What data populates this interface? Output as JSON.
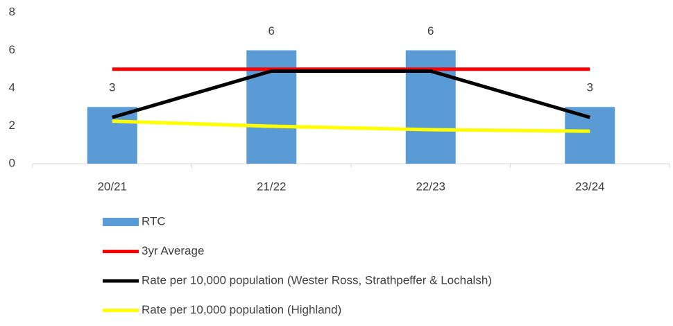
{
  "chart_data": {
    "type": "bar",
    "categories": [
      "20/21",
      "21/22",
      "22/23",
      "23/24"
    ],
    "series": [
      {
        "name": "RTC",
        "type": "bar",
        "color": "#5b9bd5",
        "values": [
          3,
          6,
          6,
          3
        ]
      },
      {
        "name": "3yr Average",
        "type": "line",
        "color": "#ff0000",
        "values": [
          5,
          5,
          5,
          5
        ]
      },
      {
        "name": "Rate per 10,000 population (Wester Ross, Strathpeffer & Lochalsh)",
        "type": "line",
        "color": "#000000",
        "values": [
          2.45,
          4.9,
          4.9,
          2.45
        ]
      },
      {
        "name": "Rate per 10,000 population (Highland)",
        "type": "line",
        "color": "#ffff00",
        "values": [
          2.25,
          1.98,
          1.8,
          1.72
        ]
      }
    ],
    "ylim": [
      0,
      8
    ],
    "yticks": [
      0,
      2,
      4,
      6,
      8
    ],
    "grid": false,
    "legend": "bottom"
  }
}
